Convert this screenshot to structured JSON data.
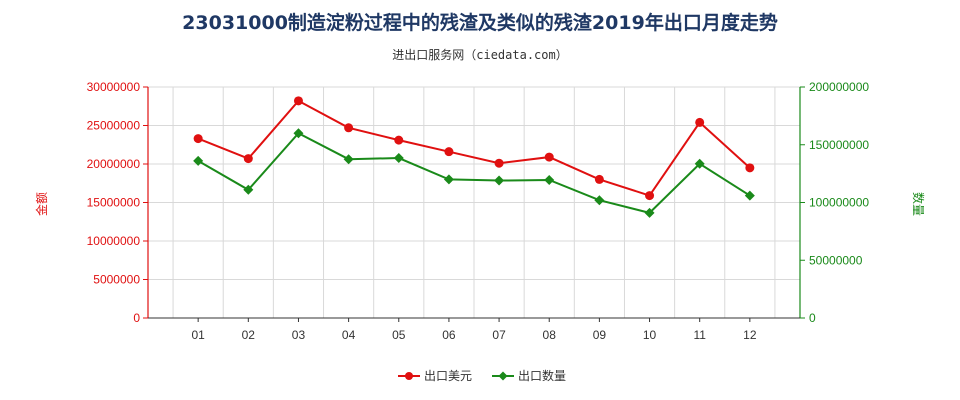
{
  "title": "23031000制造淀粉过程中的残渣及类似的残渣2019年出口月度走势",
  "subtitle": "进出口服务网（ciedata.com）",
  "colors": {
    "left_axis": "#e01010",
    "right_axis": "#1a8a1a",
    "grid": "#d9d9d9"
  },
  "chart_data": {
    "type": "line",
    "categories": [
      "01",
      "02",
      "03",
      "04",
      "05",
      "06",
      "07",
      "08",
      "09",
      "10",
      "11",
      "12"
    ],
    "ylabel_left": "金额",
    "ylabel_right": "数量",
    "ylim_left": [
      0,
      30000000
    ],
    "ylim_right": [
      0,
      200000000
    ],
    "yticks_left": [
      "0",
      "5000000",
      "10000000",
      "15000000",
      "20000000",
      "25000000",
      "30000000"
    ],
    "yticks_right": [
      "0",
      "50000000",
      "100000000",
      "150000000",
      "200000000"
    ],
    "grid": true,
    "legend_position": "bottom-center",
    "series": [
      {
        "name": "出口美元",
        "axis": "left",
        "color": "#e01010",
        "values": [
          23300000,
          20700000,
          28200000,
          24700000,
          23100000,
          21600000,
          20100000,
          20900000,
          18000000,
          15900000,
          25400000,
          19500000
        ]
      },
      {
        "name": "出口数量",
        "axis": "right",
        "color": "#1a8a1a",
        "values": [
          136000000,
          111000000,
          160000000,
          137500000,
          138500000,
          120000000,
          119000000,
          119500000,
          102000000,
          91000000,
          133500000,
          106000000
        ]
      }
    ]
  }
}
